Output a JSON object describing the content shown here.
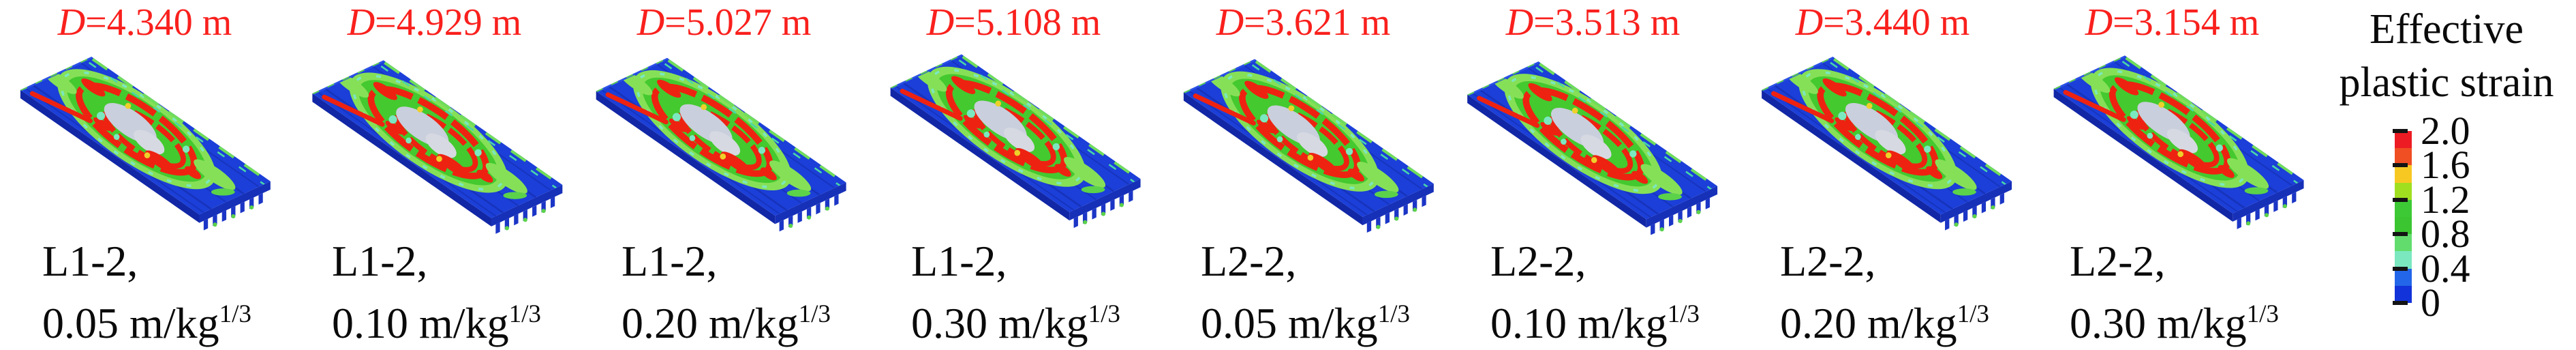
{
  "figure": {
    "description_labels": {
      "d_symbol": "D",
      "unit_superscript": "1/3"
    }
  },
  "panels": [
    {
      "d_symbol": "D",
      "d_rest": "=4.340 m",
      "case": "L1-2,",
      "scaled": "0.05 m/kg",
      "sup": "1/3"
    },
    {
      "d_symbol": "D",
      "d_rest": "=4.929 m",
      "case": "L1-2,",
      "scaled": "0.10 m/kg",
      "sup": "1/3"
    },
    {
      "d_symbol": "D",
      "d_rest": "=5.027 m",
      "case": "L1-2,",
      "scaled": "0.20 m/kg",
      "sup": "1/3"
    },
    {
      "d_symbol": "D",
      "d_rest": "=5.108 m",
      "case": "L1-2,",
      "scaled": "0.30 m/kg",
      "sup": "1/3"
    },
    {
      "d_symbol": "D",
      "d_rest": "=3.621 m",
      "case": "L2-2,",
      "scaled": "0.05 m/kg",
      "sup": "1/3"
    },
    {
      "d_symbol": "D",
      "d_rest": "=3.513 m",
      "case": "L2-2,",
      "scaled": "0.10 m/kg",
      "sup": "1/3"
    },
    {
      "d_symbol": "D",
      "d_rest": "=3.440 m",
      "case": "L2-2,",
      "scaled": "0.20 m/kg",
      "sup": "1/3"
    },
    {
      "d_symbol": "D",
      "d_rest": "=3.154 m",
      "case": "L2-2,",
      "scaled": "0.30 m/kg",
      "sup": "1/3"
    }
  ],
  "legend": {
    "title_line1": "Effective",
    "title_line2": "plastic strain",
    "tick_labels": [
      "2.0",
      "1.6",
      "1.2",
      "0.8",
      "0.4",
      "0"
    ],
    "segment_colors_top_to_bottom": [
      "#ED1C24",
      "#F04E23",
      "#F8C822",
      "#A0DF20",
      "#3DC935",
      "#3AC531",
      "#63DC6E",
      "#7BE8C0",
      "#2466E9",
      "#1233D9"
    ]
  },
  "colors": {
    "d_label_red": "#F9201D",
    "slab_top_blue": "#1B3FD8",
    "slab_side_blue": "#1227A6",
    "strain_red": "#EE2211",
    "strain_green": "#44C92F",
    "strain_pale_center": "#C9CFDC",
    "text_black": "#0A0A0A"
  },
  "chart_data": {
    "type": "heatmap",
    "title": "Effective plastic strain contour plots of slabs",
    "colorbar": {
      "label": "Effective plastic strain",
      "ticks": [
        2.0,
        1.6,
        1.2,
        0.8,
        0.4,
        0
      ],
      "range": [
        0,
        2.0
      ],
      "legend_position": "right"
    },
    "panels": [
      {
        "case": "L1-2",
        "scaled_distance": "0.05 m/kg^(1/3)",
        "D_m": 4.34
      },
      {
        "case": "L1-2",
        "scaled_distance": "0.10 m/kg^(1/3)",
        "D_m": 4.929
      },
      {
        "case": "L1-2",
        "scaled_distance": "0.20 m/kg^(1/3)",
        "D_m": 5.027
      },
      {
        "case": "L1-2",
        "scaled_distance": "0.30 m/kg^(1/3)",
        "D_m": 5.108
      },
      {
        "case": "L2-2",
        "scaled_distance": "0.05 m/kg^(1/3)",
        "D_m": 3.621
      },
      {
        "case": "L2-2",
        "scaled_distance": "0.10 m/kg^(1/3)",
        "D_m": 3.513
      },
      {
        "case": "L2-2",
        "scaled_distance": "0.20 m/kg^(1/3)",
        "D_m": 3.44
      },
      {
        "case": "L2-2",
        "scaled_distance": "0.30 m/kg^(1/3)",
        "D_m": 3.154
      }
    ]
  }
}
